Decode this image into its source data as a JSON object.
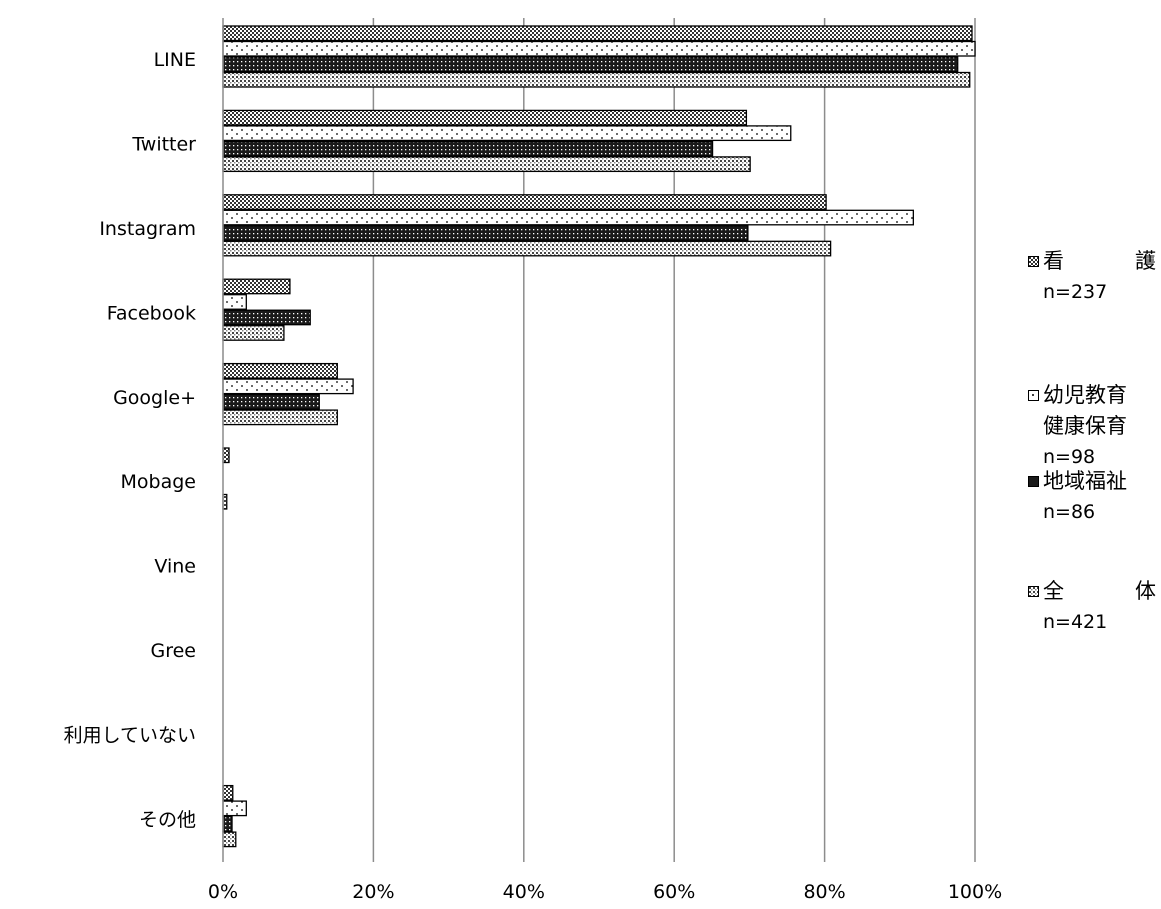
{
  "chart_data": {
    "type": "bar",
    "orientation": "horizontal",
    "categories": [
      "LINE",
      "Twitter",
      "Instagram",
      "Facebook",
      "Google+",
      "Mobage",
      "Vine",
      "Gree",
      "利用していない",
      "その他"
    ],
    "series": [
      {
        "name": "看　護",
        "n_label": "n=237",
        "pattern": "checker",
        "values": [
          99.6,
          69.6,
          80.2,
          8.9,
          15.2,
          0.8,
          0,
          0,
          0,
          1.3
        ]
      },
      {
        "name": "幼児教育健康保育",
        "n_label": "n=98",
        "pattern": "dots",
        "values": [
          100,
          75.5,
          91.8,
          3.1,
          17.3,
          0,
          0,
          0,
          0,
          3.1
        ]
      },
      {
        "name": "地域福祉",
        "n_label": "n=86",
        "pattern": "dense",
        "values": [
          97.7,
          65.1,
          69.8,
          11.6,
          12.8,
          0,
          0,
          0,
          0,
          1.2
        ]
      },
      {
        "name": "全　体",
        "n_label": "n=421",
        "pattern": "grid",
        "values": [
          99.3,
          70.1,
          80.8,
          8.1,
          15.2,
          0.5,
          0,
          0,
          0,
          1.7
        ]
      }
    ],
    "xticks": [
      "0%",
      "20%",
      "40%",
      "60%",
      "80%",
      "100%"
    ],
    "xlim": [
      0,
      100
    ],
    "grid": true,
    "legend_position": "right",
    "title": "",
    "xlabel": "",
    "ylabel": ""
  },
  "legend": [
    {
      "name_parts": [
        "看",
        "護"
      ],
      "n": "n=237",
      "pattern": "checker"
    },
    {
      "name_lines": [
        "幼児教育",
        "健康保育"
      ],
      "n": "n=98",
      "pattern": "dots"
    },
    {
      "name_lines": [
        "地域福祉"
      ],
      "n": "n=86",
      "pattern": "dense"
    },
    {
      "name_parts": [
        "全",
        "体"
      ],
      "n": "n=421",
      "pattern": "grid"
    }
  ]
}
